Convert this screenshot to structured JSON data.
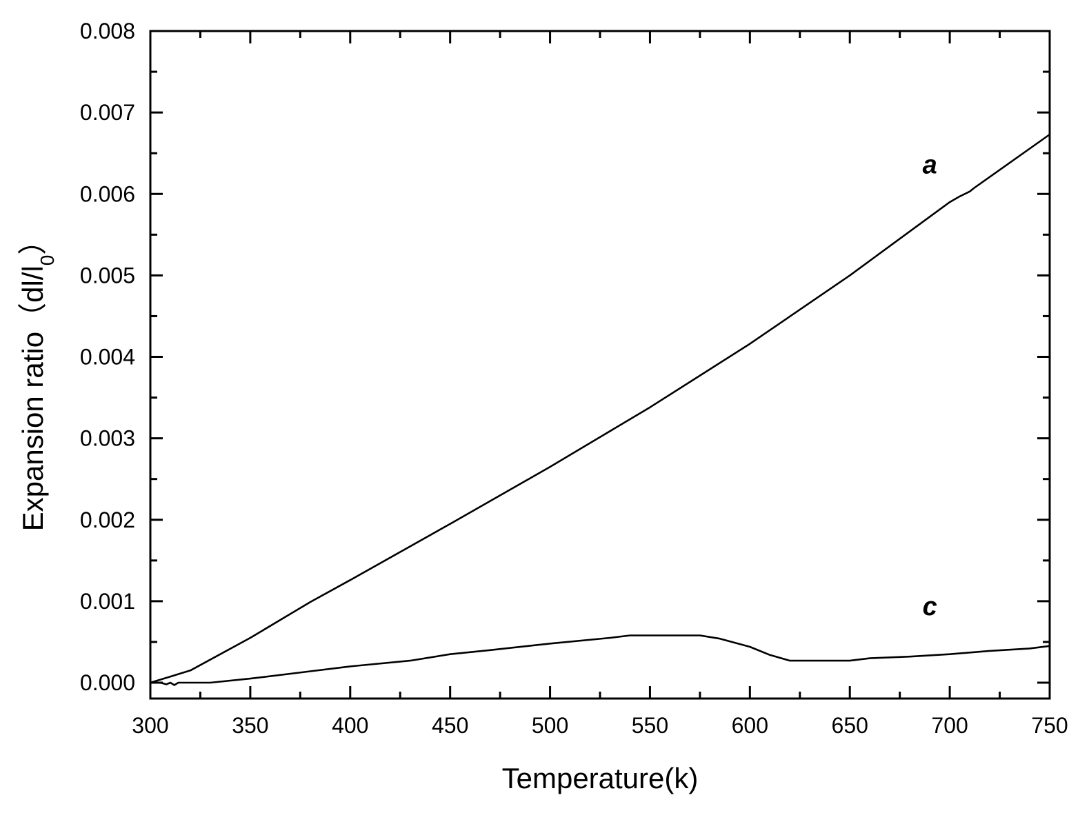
{
  "chart_data": {
    "type": "line",
    "xlabel": "Temperature(k)",
    "ylabel_text": "Expansion ratio（dl/l",
    "ylabel_subscript": "0",
    "ylabel_close": "）",
    "xlim": [
      300,
      750
    ],
    "ylim": [
      0.0,
      0.008
    ],
    "x_ticks": [
      300,
      350,
      400,
      450,
      500,
      550,
      600,
      650,
      700,
      750
    ],
    "x_tick_labels": [
      "300",
      "350",
      "400",
      "450",
      "500",
      "550",
      "600",
      "650",
      "700",
      "750"
    ],
    "y_ticks": [
      0.0,
      0.001,
      0.002,
      0.003,
      0.004,
      0.005,
      0.006,
      0.007,
      0.008
    ],
    "y_tick_labels": [
      "0.000",
      "0.001",
      "0.002",
      "0.003",
      "0.004",
      "0.005",
      "0.006",
      "0.007",
      "0.008"
    ],
    "grid": false,
    "legend": "none",
    "series": [
      {
        "name": "a",
        "label_at": [
          690,
          0.00625
        ],
        "x": [
          300,
          320,
          350,
          380,
          400,
          450,
          500,
          550,
          600,
          650,
          700,
          705,
          710,
          712,
          750
        ],
        "y": [
          0.0,
          0.00015,
          0.00055,
          0.00099,
          0.00126,
          0.00195,
          0.00265,
          0.00338,
          0.00416,
          0.005,
          0.0059,
          0.00597,
          0.00603,
          0.00607,
          0.00673
        ]
      },
      {
        "name": "c",
        "label_at": [
          690,
          0.00083
        ],
        "x": [
          300,
          305,
          308,
          310,
          312,
          314,
          316,
          330,
          350,
          380,
          400,
          430,
          450,
          470,
          500,
          530,
          540,
          575,
          585,
          600,
          610,
          620,
          630,
          650,
          660,
          680,
          700,
          720,
          740,
          750
        ],
        "y": [
          0.0,
          0.0,
          -2e-05,
          0.0,
          -3e-05,
          0.0,
          0.0,
          0.0,
          5e-05,
          0.00014,
          0.0002,
          0.00027,
          0.00035,
          0.0004,
          0.00048,
          0.00055,
          0.00058,
          0.00058,
          0.00054,
          0.00044,
          0.00034,
          0.00027,
          0.00027,
          0.00027,
          0.0003,
          0.00032,
          0.00035,
          0.00039,
          0.00042,
          0.00045
        ]
      }
    ]
  }
}
